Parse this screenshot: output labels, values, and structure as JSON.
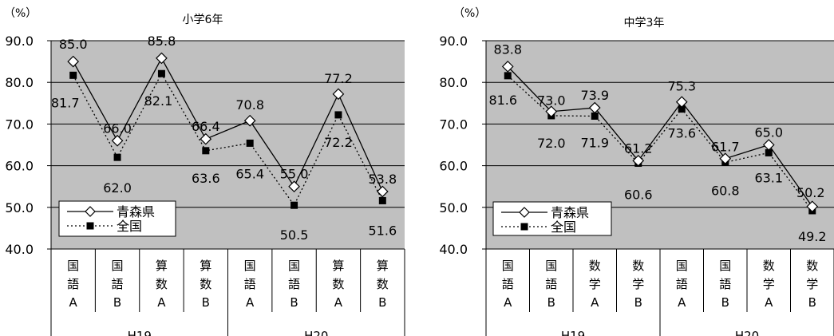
{
  "chart_data": [
    {
      "type": "line",
      "title": "小学6年",
      "unit_label": "（%）",
      "ylim": [
        40,
        90
      ],
      "y_ticks": [
        "40.0",
        "50.0",
        "60.0",
        "70.0",
        "80.0",
        "90.0"
      ],
      "y_tick_values": [
        40,
        50,
        60,
        70,
        80,
        90
      ],
      "grid": true,
      "legend_position": "lower-left",
      "categories": [
        [
          "国",
          "語",
          "A"
        ],
        [
          "国",
          "語",
          "B"
        ],
        [
          "算",
          "数",
          "A"
        ],
        [
          "算",
          "数",
          "B"
        ],
        [
          "国",
          "語",
          "A"
        ],
        [
          "国",
          "語",
          "B"
        ],
        [
          "算",
          "数",
          "A"
        ],
        [
          "算",
          "数",
          "B"
        ]
      ],
      "groups": [
        {
          "label": "H19",
          "span": 4
        },
        {
          "label": "H20",
          "span": 4
        }
      ],
      "series": [
        {
          "name": "青森県",
          "marker": "diamond-open",
          "line": "solid",
          "values": [
            85.0,
            66.0,
            85.8,
            66.4,
            70.8,
            55.0,
            77.2,
            53.8
          ],
          "labels": [
            "85.0",
            "66.0",
            "85.8",
            "66.4",
            "70.8",
            "55.0",
            "77.2",
            "53.8"
          ]
        },
        {
          "name": "全国",
          "marker": "square-filled",
          "line": "dotted",
          "values": [
            81.7,
            62.0,
            82.1,
            63.6,
            65.4,
            50.5,
            72.2,
            51.6
          ],
          "labels": [
            "81.7",
            "62.0",
            "82.1",
            "63.6",
            "65.4",
            "50.5",
            "72.2",
            "51.6"
          ]
        }
      ]
    },
    {
      "type": "line",
      "title": "中学3年",
      "unit_label": "（%）",
      "ylim": [
        40,
        90
      ],
      "y_ticks": [
        "40.0",
        "50.0",
        "60.0",
        "70.0",
        "80.0",
        "90.0"
      ],
      "y_tick_values": [
        40,
        50,
        60,
        70,
        80,
        90
      ],
      "grid": true,
      "legend_position": "lower-left",
      "categories": [
        [
          "国",
          "語",
          "A"
        ],
        [
          "国",
          "語",
          "B"
        ],
        [
          "数",
          "学",
          "A"
        ],
        [
          "数",
          "学",
          "B"
        ],
        [
          "国",
          "語",
          "A"
        ],
        [
          "国",
          "語",
          "B"
        ],
        [
          "数",
          "学",
          "A"
        ],
        [
          "数",
          "学",
          "B"
        ]
      ],
      "groups": [
        {
          "label": "H19",
          "span": 4
        },
        {
          "label": "H20",
          "span": 4
        }
      ],
      "series": [
        {
          "name": "青森県",
          "marker": "diamond-open",
          "line": "solid",
          "values": [
            83.8,
            73.0,
            73.9,
            61.2,
            75.3,
            61.7,
            65.0,
            50.2
          ],
          "labels": [
            "83.8",
            "73.0",
            "73.9",
            "61.2",
            "75.3",
            "61.7",
            "65.0",
            "50.2"
          ]
        },
        {
          "name": "全国",
          "marker": "square-filled",
          "line": "dotted",
          "values": [
            81.6,
            72.0,
            71.9,
            60.6,
            73.6,
            60.8,
            63.1,
            49.2
          ],
          "labels": [
            "81.6",
            "72.0",
            "71.9",
            "60.6",
            "73.6",
            "60.8",
            "63.1",
            "49.2"
          ]
        }
      ]
    }
  ]
}
